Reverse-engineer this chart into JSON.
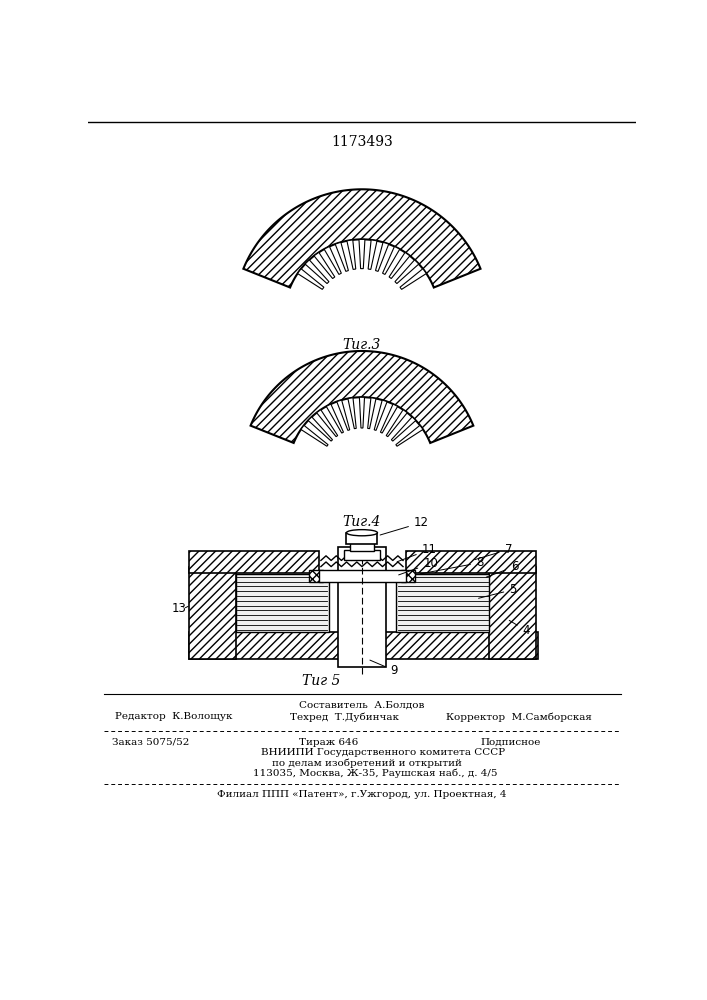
{
  "patent_number": "1173493",
  "fig3_label": "Τиг.3",
  "fig4_label": "Τиг.4",
  "fig5_label": "Τиг 5",
  "editor_line": "Редактор  К.Волощук",
  "composer_line": "Составитель  А.Болдов",
  "techred_line": "Техред  Т.Дубинчак",
  "corrector_line": "Корректор  М.Самборская",
  "order_line": "Заказ 5075/52",
  "tirazh_line": "Тираж 646",
  "podpisnoe_line": "Подписное",
  "vniiipi_line1": "ВНИИПИ Государственного комитета СССР",
  "vniiipi_line2": "по делам изобретений и открытий",
  "vniiipi_line3": "113035, Москва, Ж-35, Раушская наб., д. 4/5",
  "filial_line": "Филиал ППП «Патент», г.Ужгород, ул. Проектная, 4",
  "bg_color": "#ffffff"
}
